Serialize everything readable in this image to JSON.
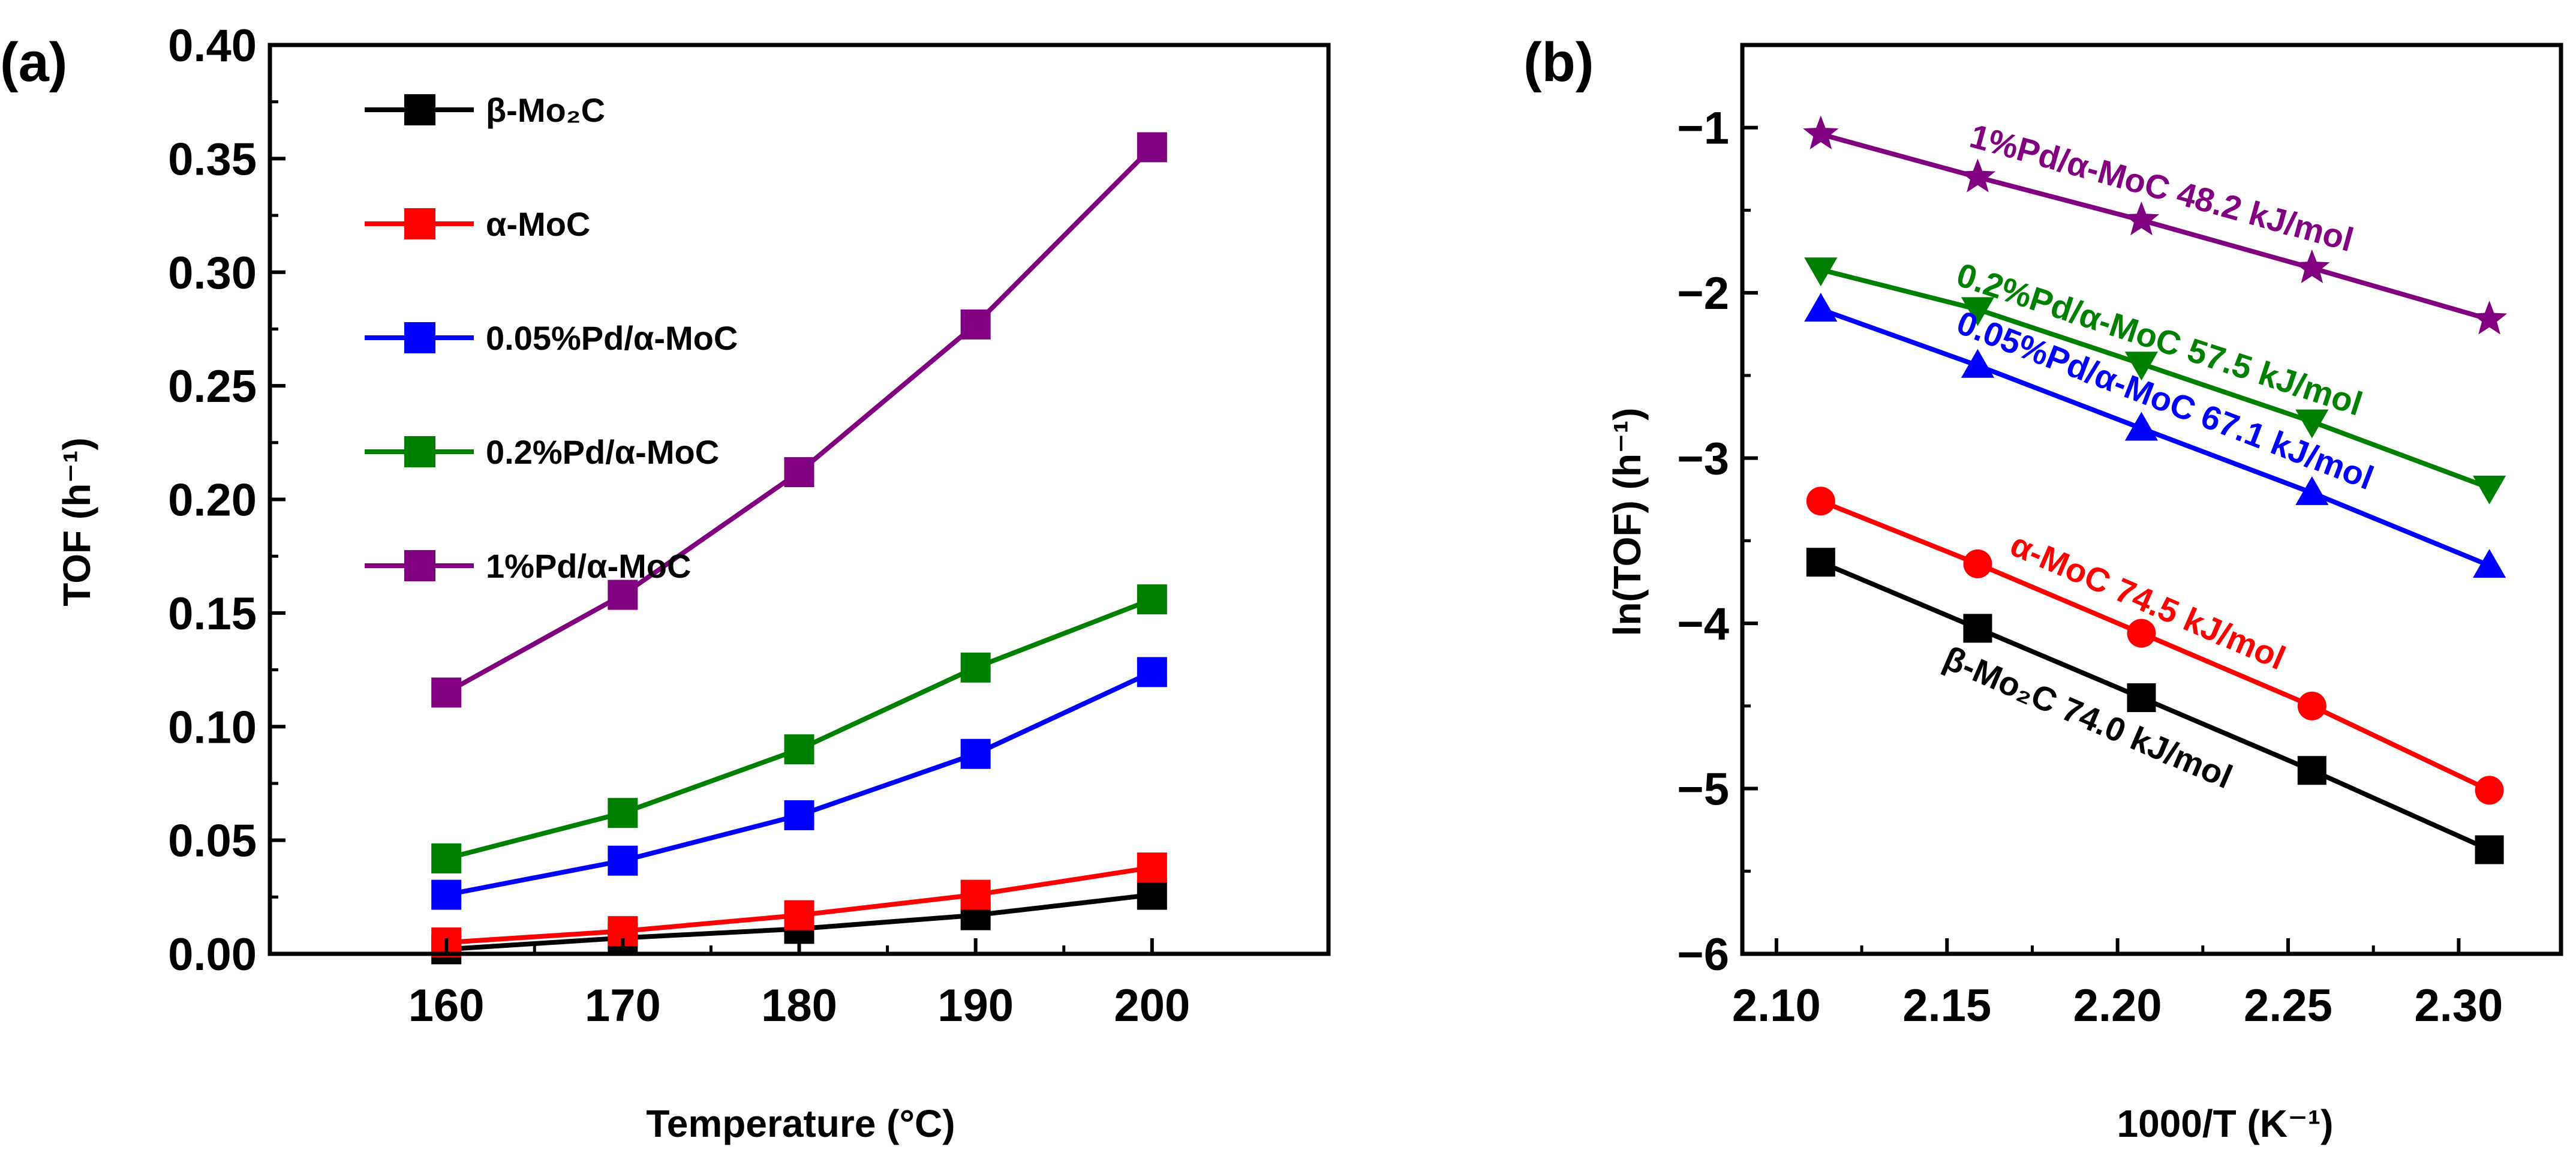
{
  "chart_data": [
    {
      "panel": "(a)",
      "type": "line",
      "xlabel": "Temperature (°C)",
      "ylabel": "TOF (h⁻¹)",
      "xlim": [
        150,
        210
      ],
      "ylim": [
        0,
        0.4
      ],
      "xticks": [
        160,
        170,
        180,
        190,
        200
      ],
      "yticks": [
        0.0,
        0.05,
        0.1,
        0.15,
        0.2,
        0.25,
        0.3,
        0.35,
        0.4
      ],
      "x": [
        160,
        170,
        180,
        190,
        200
      ],
      "legend_position": "top-left",
      "series": [
        {
          "name": "β-Mo₂C",
          "color": "#000000",
          "marker": "square",
          "values": [
            0.002,
            0.007,
            0.011,
            0.017,
            0.026
          ]
        },
        {
          "name": "α-MoC",
          "color": "#ff0000",
          "marker": "square",
          "values": [
            0.005,
            0.01,
            0.017,
            0.026,
            0.038
          ]
        },
        {
          "name": "0.05%Pd/α-MoC",
          "color": "#0000ff",
          "marker": "square",
          "values": [
            0.026,
            0.041,
            0.061,
            0.088,
            0.124
          ]
        },
        {
          "name": "0.2%Pd/α-MoC",
          "color": "#008000",
          "marker": "square",
          "values": [
            0.042,
            0.062,
            0.09,
            0.126,
            0.156
          ]
        },
        {
          "name": "1%Pd/α-MoC",
          "color": "#800080",
          "marker": "square",
          "values": [
            0.115,
            0.158,
            0.212,
            0.277,
            0.355
          ]
        }
      ]
    },
    {
      "panel": "(b)",
      "type": "line",
      "xlabel": "1000/T (K⁻¹)",
      "ylabel": "ln(TOF) (h⁻¹)",
      "xlim": [
        2.09,
        2.33
      ],
      "ylim": [
        -6,
        -0.5
      ],
      "xticks": [
        2.1,
        2.15,
        2.2,
        2.25,
        2.3
      ],
      "yticks": [
        -6,
        -5,
        -4,
        -3,
        -2,
        -1
      ],
      "x": [
        2.113,
        2.159,
        2.207,
        2.257,
        2.309
      ],
      "series": [
        {
          "name": "β-Mo₂C",
          "color": "#000000",
          "marker": "square",
          "annotation": "β-Mo₂C 74.0 kJ/mol",
          "values": [
            -3.63,
            -4.03,
            -4.45,
            -4.89,
            -5.37
          ]
        },
        {
          "name": "α-MoC",
          "color": "#ff0000",
          "marker": "circle",
          "annotation": "α-MoC 74.5 kJ/mol",
          "values": [
            -3.26,
            -3.64,
            -4.06,
            -4.5,
            -5.01
          ]
        },
        {
          "name": "0.05%Pd/α-MoC",
          "color": "#0000ff",
          "marker": "triangle-up",
          "annotation": "0.05%Pd/α-MoC 67.1 kJ/mol",
          "values": [
            -2.1,
            -2.44,
            -2.82,
            -3.21,
            -3.65
          ]
        },
        {
          "name": "0.2%Pd/α-MoC",
          "color": "#008000",
          "marker": "triangle-down",
          "annotation": "0.2%Pd/α-MoC 57.5 kJ/mol",
          "values": [
            -1.86,
            -2.1,
            -2.43,
            -2.78,
            -3.18
          ]
        },
        {
          "name": "1%Pd/α-MoC",
          "color": "#800080",
          "marker": "star",
          "annotation": "1%Pd/α-MoC 48.2 kJ/mol",
          "values": [
            -1.04,
            -1.3,
            -1.56,
            -1.85,
            -2.16
          ]
        }
      ]
    }
  ]
}
